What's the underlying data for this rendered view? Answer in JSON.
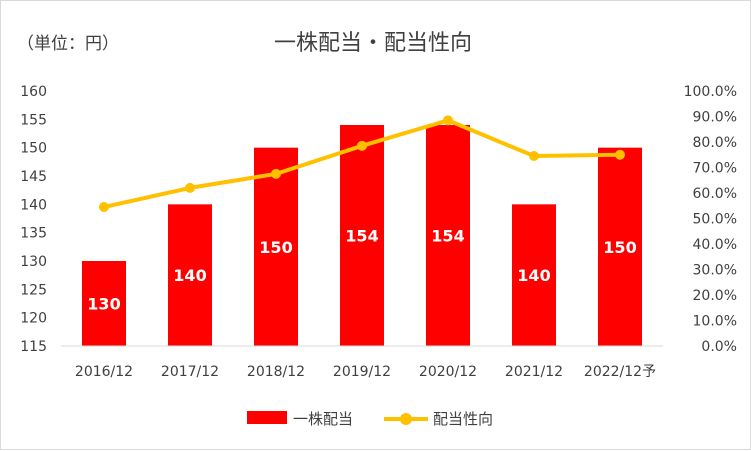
{
  "chart_data": {
    "type": "bar",
    "title": "一株配当・配当性向",
    "unit_label": "（単位：円）",
    "categories": [
      "2016/12",
      "2017/12",
      "2018/12",
      "2019/12",
      "2020/12",
      "2021/12",
      "2022/12予"
    ],
    "series": [
      {
        "name": "一株配当",
        "type": "bar",
        "axis": "left",
        "color": "#ff0000",
        "values": [
          130,
          140,
          150,
          154,
          154,
          140,
          150
        ],
        "labels": [
          "130",
          "140",
          "150",
          "154",
          "154",
          "140",
          "150"
        ]
      },
      {
        "name": "配当性向",
        "type": "line",
        "axis": "right",
        "color": "#ffc000",
        "values": [
          54.5,
          62.0,
          67.5,
          78.5,
          88.5,
          74.5,
          75.0
        ]
      }
    ],
    "y_left": {
      "ylim": [
        115,
        160
      ],
      "ticks": [
        "160",
        "155",
        "150",
        "145",
        "140",
        "135",
        "130",
        "125",
        "120",
        "115"
      ]
    },
    "y_right": {
      "ylim": [
        0,
        100
      ],
      "ticks": [
        "100.0%",
        "90.0%",
        "80.0%",
        "70.0%",
        "60.0%",
        "50.0%",
        "40.0%",
        "30.0%",
        "20.0%",
        "10.0%",
        "0.0%"
      ]
    },
    "legend_position": "bottom",
    "grid": false
  }
}
